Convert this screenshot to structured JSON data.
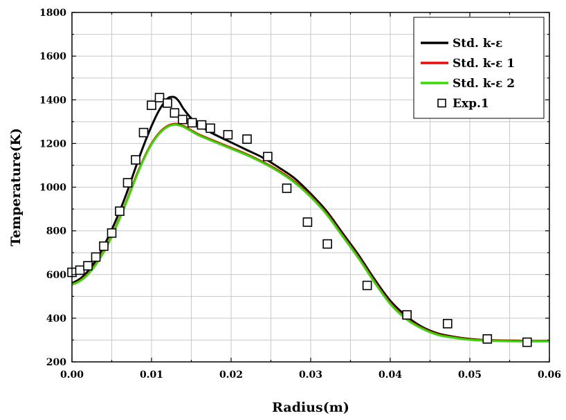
{
  "chart_data": {
    "type": "line",
    "xlabel": "Radius(m)",
    "ylabel": "Temperature(K)",
    "xlim": [
      0.0,
      0.06
    ],
    "ylim": [
      200,
      1800
    ],
    "x_ticks": [
      "0.00",
      "0.01",
      "0.02",
      "0.03",
      "0.04",
      "0.05",
      "0.06"
    ],
    "y_ticks": [
      "200",
      "400",
      "600",
      "800",
      "1000",
      "1200",
      "1400",
      "1600",
      "1800"
    ],
    "grid": true,
    "legend_position": "top-right",
    "series": [
      {
        "name": "Std. k-ε",
        "color": "#000000",
        "style": "line",
        "x": [
          0.0,
          0.001,
          0.002,
          0.003,
          0.004,
          0.005,
          0.006,
          0.007,
          0.008,
          0.009,
          0.01,
          0.011,
          0.012,
          0.0125,
          0.013,
          0.0135,
          0.014,
          0.015,
          0.016,
          0.017,
          0.018,
          0.02,
          0.022,
          0.024,
          0.026,
          0.028,
          0.03,
          0.032,
          0.034,
          0.036,
          0.038,
          0.04,
          0.042,
          0.044,
          0.046,
          0.048,
          0.05,
          0.052,
          0.054,
          0.056,
          0.058,
          0.06
        ],
        "y": [
          560,
          580,
          615,
          665,
          730,
          805,
          890,
          985,
          1090,
          1190,
          1280,
          1355,
          1405,
          1413,
          1410,
          1390,
          1360,
          1315,
          1285,
          1260,
          1240,
          1205,
          1170,
          1135,
          1090,
          1040,
          970,
          890,
          790,
          690,
          580,
          480,
          410,
          360,
          330,
          315,
          305,
          300,
          298,
          297,
          296,
          296
        ]
      },
      {
        "name": "Std. k-ε 1",
        "color": "#ff0000",
        "style": "line",
        "x": [
          0.0,
          0.001,
          0.002,
          0.003,
          0.004,
          0.005,
          0.006,
          0.007,
          0.008,
          0.009,
          0.01,
          0.011,
          0.012,
          0.013,
          0.014,
          0.015,
          0.016,
          0.018,
          0.02,
          0.022,
          0.024,
          0.026,
          0.028,
          0.03,
          0.032,
          0.034,
          0.036,
          0.038,
          0.04,
          0.042,
          0.044,
          0.046,
          0.048,
          0.05,
          0.052,
          0.054,
          0.056,
          0.058,
          0.06
        ],
        "y": [
          555,
          572,
          603,
          648,
          707,
          778,
          860,
          950,
          1045,
          1130,
          1200,
          1250,
          1280,
          1290,
          1280,
          1260,
          1240,
          1210,
          1180,
          1150,
          1115,
          1075,
          1025,
          960,
          880,
          780,
          680,
          570,
          470,
          400,
          355,
          326,
          312,
          303,
          299,
          297,
          296,
          295,
          295
        ]
      },
      {
        "name": "Std. k-ε 2",
        "color": "#33dd00",
        "style": "line",
        "x": [
          0.0,
          0.001,
          0.002,
          0.003,
          0.004,
          0.005,
          0.006,
          0.007,
          0.008,
          0.009,
          0.01,
          0.011,
          0.012,
          0.013,
          0.014,
          0.015,
          0.016,
          0.018,
          0.02,
          0.022,
          0.024,
          0.026,
          0.028,
          0.03,
          0.032,
          0.034,
          0.036,
          0.038,
          0.04,
          0.042,
          0.044,
          0.046,
          0.048,
          0.05,
          0.052,
          0.054,
          0.056,
          0.058,
          0.06
        ],
        "y": [
          553,
          570,
          600,
          645,
          703,
          774,
          856,
          946,
          1040,
          1126,
          1196,
          1246,
          1276,
          1286,
          1276,
          1256,
          1236,
          1206,
          1176,
          1146,
          1111,
          1070,
          1020,
          955,
          875,
          775,
          675,
          565,
          465,
          396,
          352,
          323,
          310,
          301,
          297,
          295,
          294,
          294,
          294
        ]
      },
      {
        "name": "Exp.1",
        "color": "#000000",
        "style": "marker",
        "marker": "open-square",
        "x": [
          0.0,
          0.001,
          0.002,
          0.003,
          0.004,
          0.005,
          0.006,
          0.007,
          0.008,
          0.009,
          0.01,
          0.011,
          0.012,
          0.0129,
          0.0139,
          0.0151,
          0.0163,
          0.0174,
          0.0196,
          0.022,
          0.0246,
          0.027,
          0.0296,
          0.0321,
          0.0371,
          0.0421,
          0.0472,
          0.0522,
          0.0572
        ],
        "y": [
          610,
          620,
          640,
          680,
          730,
          790,
          890,
          1020,
          1125,
          1250,
          1375,
          1410,
          1385,
          1340,
          1310,
          1295,
          1285,
          1270,
          1240,
          1220,
          1140,
          995,
          840,
          740,
          550,
          415,
          375,
          305,
          290
        ]
      }
    ]
  }
}
